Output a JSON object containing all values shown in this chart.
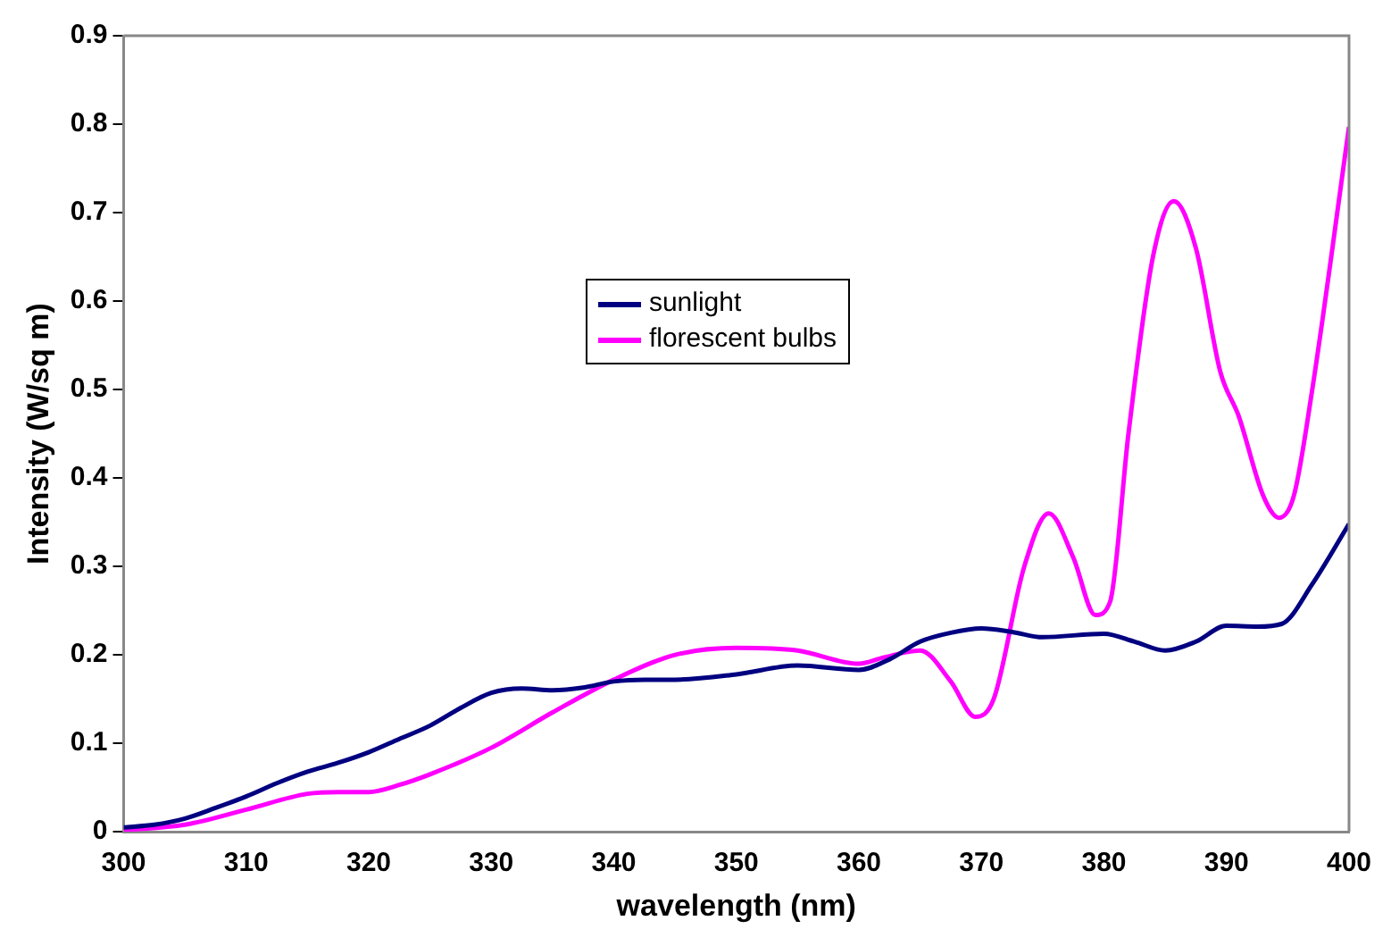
{
  "chart_data": {
    "type": "line",
    "xlabel": "wavelength (nm)",
    "ylabel": "Intensity (W/sq m)",
    "xlim": [
      300,
      400
    ],
    "xticks": [
      300,
      310,
      320,
      330,
      340,
      350,
      360,
      370,
      380,
      390,
      400
    ],
    "ylim": [
      0,
      0.9
    ],
    "yticks": [
      0,
      0.1,
      0.2,
      0.3,
      0.4,
      0.5,
      0.6,
      0.7,
      0.8,
      0.9
    ],
    "grid": false,
    "legend": "center",
    "marker": "none",
    "line_style": "solid",
    "series": [
      {
        "name": "sunlight",
        "color": "#000080",
        "x": [
          300,
          302.5,
          305,
          307.5,
          310,
          312.5,
          315,
          317.5,
          320,
          322.5,
          325,
          327.5,
          330,
          332.5,
          335,
          337.5,
          340,
          342.5,
          345,
          350,
          355,
          360,
          362.5,
          365,
          367.5,
          370,
          372.5,
          375,
          380,
          382.5,
          385,
          387.5,
          390,
          392.5,
          394.5,
          397,
          400
        ],
        "values": [
          0.005,
          0.008,
          0.015,
          0.027,
          0.04,
          0.055,
          0.068,
          0.078,
          0.09,
          0.105,
          0.12,
          0.14,
          0.157,
          0.162,
          0.16,
          0.163,
          0.17,
          0.172,
          0.172,
          0.178,
          0.188,
          0.183,
          0.195,
          0.215,
          0.225,
          0.23,
          0.226,
          0.22,
          0.224,
          0.215,
          0.205,
          0.215,
          0.233,
          0.232,
          0.235,
          0.28,
          0.348
        ]
      },
      {
        "name": "florescent bulbs",
        "color": "#ff00ff",
        "x": [
          300,
          305,
          310,
          315,
          317.5,
          320,
          322.5,
          325,
          330,
          335,
          340,
          345,
          350,
          355,
          360,
          362,
          365,
          367.5,
          369.5,
          371,
          373.5,
          375.5,
          377.5,
          379.3,
          380.5,
          382,
          384,
          385.7,
          387.5,
          389.5,
          391,
          393,
          394.3,
          395.5,
          397,
          400
        ],
        "values": [
          0.002,
          0.008,
          0.025,
          0.043,
          0.045,
          0.045,
          0.053,
          0.065,
          0.095,
          0.135,
          0.172,
          0.2,
          0.208,
          0.205,
          0.19,
          0.197,
          0.205,
          0.17,
          0.13,
          0.15,
          0.3,
          0.36,
          0.31,
          0.245,
          0.26,
          0.45,
          0.65,
          0.713,
          0.66,
          0.52,
          0.47,
          0.38,
          0.355,
          0.38,
          0.5,
          0.797
        ]
      }
    ]
  }
}
